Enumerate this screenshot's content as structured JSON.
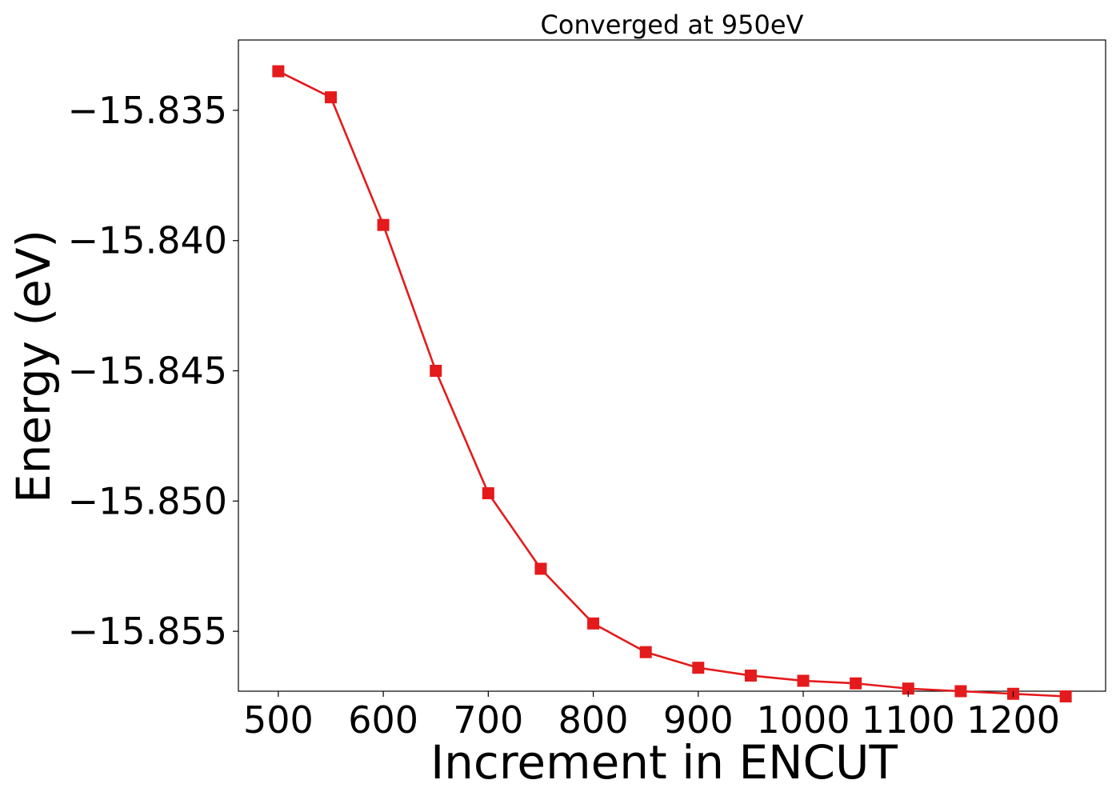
{
  "chart_data": {
    "type": "line",
    "title": "Converged at 950eV",
    "xlabel": "Increment in ENCUT",
    "ylabel": "Energy (eV)",
    "xlim": [
      462,
      1288
    ],
    "ylim": [
      -15.8573,
      -15.8323
    ],
    "xticks": [
      500,
      600,
      700,
      800,
      900,
      1000,
      1100,
      1200
    ],
    "xtick_labels": [
      "500",
      "600",
      "700",
      "800",
      "900",
      "1000",
      "1100",
      "1200"
    ],
    "yticks": [
      -15.835,
      -15.84,
      -15.845,
      -15.85,
      -15.855
    ],
    "ytick_labels": [
      "−15.835",
      "−15.840",
      "−15.845",
      "−15.850",
      "−15.855"
    ],
    "grid": false,
    "series": [
      {
        "color": "#e41a1c",
        "marker": "square",
        "x": [
          500,
          550,
          600,
          650,
          700,
          750,
          800,
          850,
          900,
          950,
          1000,
          1050,
          1100,
          1150,
          1200,
          1250
        ],
        "y": [
          -15.8335,
          -15.8345,
          -15.8394,
          -15.845,
          -15.8497,
          -15.8526,
          -15.8547,
          -15.8558,
          -15.8564,
          -15.8567,
          -15.8569,
          -15.857,
          -15.8572,
          -15.8573,
          -15.8574,
          -15.8575
        ]
      }
    ]
  }
}
